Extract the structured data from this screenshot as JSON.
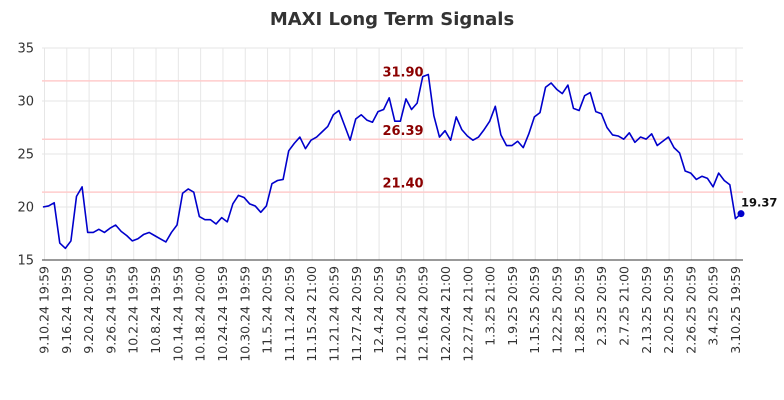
{
  "chart_data": {
    "type": "line",
    "title": "MAXI Long Term Signals",
    "xlabel": "",
    "ylabel": "",
    "ylim": [
      15,
      35
    ],
    "yticks": [
      15,
      20,
      25,
      30,
      35
    ],
    "grid": true,
    "x_tick_labels": [
      "9.10.24 19:59",
      "9.16.24 19:59",
      "9.20.24 20:00",
      "9.26.24 19:59",
      "10.2.24 19:59",
      "10.8.24 19:59",
      "10.14.24 19:59",
      "10.18.24 20:00",
      "10.24.24 19:59",
      "10.30.24 19:59",
      "11.5.24 20:59",
      "11.11.24 20:59",
      "11.15.24 21:00",
      "11.21.24 20:59",
      "11.27.24 20:59",
      "12.4.24 20:59",
      "12.10.24 20:59",
      "12.16.24 20:59",
      "12.20.24 21:00",
      "12.27.24 21:00",
      "1.3.25 21:00",
      "1.9.25 20:59",
      "1.15.25 20:59",
      "1.22.25 20:59",
      "1.28.25 20:59",
      "2.3.25 20:59",
      "2.7.25 21:00",
      "2.13.25 20:59",
      "2.20.25 20:59",
      "2.26.25 20:59",
      "3.4.25 20:59",
      "3.10.25 19:59"
    ],
    "horizontal_levels": [
      {
        "value": 31.9,
        "label": "31.90"
      },
      {
        "value": 26.39,
        "label": "26.39"
      },
      {
        "value": 21.4,
        "label": "21.40"
      }
    ],
    "series": [
      {
        "values": [
          20.0,
          20.1,
          20.4,
          16.6,
          16.1,
          16.8,
          21.0,
          21.9,
          17.6,
          17.6,
          17.9,
          17.6,
          18.0,
          18.3,
          17.7,
          17.3,
          16.8,
          17.0,
          17.4,
          17.6,
          17.3,
          17.0,
          16.7,
          17.6,
          18.3,
          21.3,
          21.7,
          21.4,
          19.1,
          18.8,
          18.8,
          18.4,
          19.0,
          18.6,
          20.3,
          21.1,
          20.9,
          20.3,
          20.1,
          19.5,
          20.1,
          22.2,
          22.5,
          22.6,
          25.3,
          26.0,
          26.6,
          25.5,
          26.3,
          26.6,
          27.1,
          27.6,
          28.7,
          29.1,
          27.7,
          26.3,
          28.3,
          28.7,
          28.2,
          28.0,
          29.0,
          29.2,
          30.3,
          28.1,
          28.1,
          30.2,
          29.2,
          29.8,
          32.3,
          32.5,
          28.6,
          26.6,
          27.2,
          26.3,
          28.5,
          27.3,
          26.7,
          26.3,
          26.6,
          27.3,
          28.1,
          29.5,
          26.8,
          25.8,
          25.8,
          26.2,
          25.6,
          26.9,
          28.5,
          28.9,
          31.3,
          31.7,
          31.1,
          30.7,
          31.5,
          29.3,
          29.1,
          30.5,
          30.8,
          29.0,
          28.8,
          27.5,
          26.8,
          26.7,
          26.4,
          27.0,
          26.1,
          26.6,
          26.4,
          26.9,
          25.8,
          26.2,
          26.6,
          25.6,
          25.1,
          23.4,
          23.2,
          22.6,
          22.9,
          22.7,
          21.9,
          23.2,
          22.5,
          22.1,
          18.9,
          19.37
        ],
        "color": "#0000cc"
      }
    ],
    "last_value_label": "19.37",
    "level_line_color": "#ffcccc",
    "level_label_color": "#8b0000"
  }
}
